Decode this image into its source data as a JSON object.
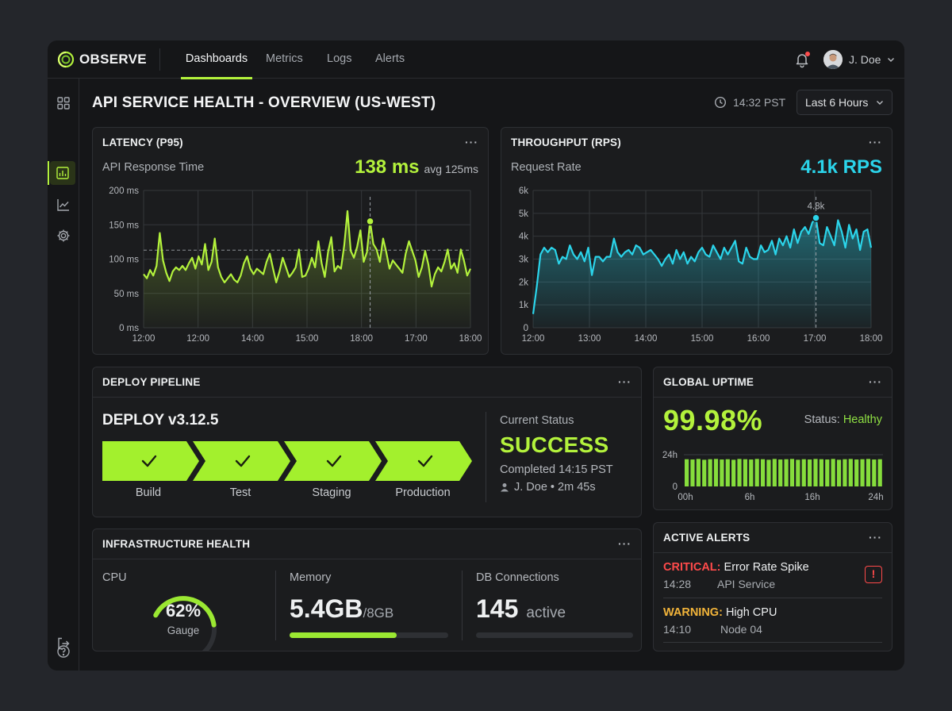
{
  "app": {
    "name": "OBSERVE"
  },
  "nav": {
    "tabs": [
      "Dashboards",
      "Metrics",
      "Logs",
      "Alerts"
    ],
    "active_tab": "Dashboards"
  },
  "user": {
    "name": "J. Doe"
  },
  "sidebar": {
    "items": [
      "grid-icon",
      "dashboard-icon",
      "chart-icon",
      "gear-icon"
    ],
    "bottom": [
      "help-icon",
      "logout-icon"
    ],
    "active": "dashboard-icon"
  },
  "page": {
    "title": "API SERVICE HEALTH - OVERVIEW (US-WEST)",
    "time": "14:32 PST",
    "range": "Last 6 Hours"
  },
  "colors": {
    "accent": "#b3f23c",
    "cyan": "#2bd4ea",
    "critical": "#ff4a4a",
    "warning": "#f2b43a",
    "healthy": "#8fe043"
  },
  "latency": {
    "title": "LATENCY (P95)",
    "subtitle": "API Response Time",
    "value": "138 ms",
    "avg": "avg 125ms",
    "more": "···",
    "chart_data": {
      "type": "line",
      "ylabels": [
        "200 ms",
        "150 ms",
        "100 ms",
        "50 ms",
        "0 ms"
      ],
      "xlabels": [
        "12:00",
        "12:00",
        "14:00",
        "15:00",
        "18:00",
        "17:00",
        "18:00"
      ],
      "ylim": [
        0,
        200
      ],
      "reference_line": 113,
      "marker": {
        "index": 70,
        "value": 155
      },
      "values": [
        78,
        72,
        84,
        76,
        90,
        138,
        98,
        80,
        68,
        82,
        88,
        84,
        90,
        84,
        94,
        102,
        86,
        104,
        92,
        122,
        84,
        96,
        130,
        88,
        74,
        66,
        72,
        78,
        70,
        66,
        76,
        94,
        104,
        86,
        78,
        86,
        82,
        78,
        96,
        108,
        86,
        66,
        82,
        102,
        88,
        74,
        80,
        88,
        114,
        74,
        76,
        86,
        102,
        88,
        126,
        94,
        74,
        110,
        132,
        82,
        90,
        86,
        120,
        170,
        112,
        102,
        118,
        142,
        96,
        110,
        155,
        122,
        114,
        96,
        130,
        110,
        86,
        98,
        92,
        86,
        80,
        108,
        126,
        112,
        98,
        74,
        88,
        112,
        92,
        60,
        78,
        88,
        82,
        96,
        114,
        86,
        94,
        80,
        114,
        98,
        76,
        86
      ]
    }
  },
  "throughput": {
    "title": "THROUGHPUT (RPS)",
    "subtitle": "Request Rate",
    "value": "4.1k RPS",
    "more": "···",
    "chart_data": {
      "type": "area",
      "ylabels": [
        "6k",
        "5k",
        "4k",
        "3k",
        "2k",
        "1k",
        "0"
      ],
      "xlabels": [
        "12:00",
        "13:00",
        "14:00",
        "15:00",
        "16:00",
        "17:00",
        "18:00"
      ],
      "ylim": [
        0,
        6000
      ],
      "marker": {
        "index": 77,
        "value": 4800,
        "label": "4.8k"
      },
      "values": [
        600,
        1800,
        3200,
        3500,
        3300,
        3500,
        3400,
        2800,
        3100,
        3000,
        3600,
        3200,
        3000,
        3300,
        2900,
        3500,
        2300,
        3100,
        3100,
        2900,
        3100,
        3100,
        3900,
        3300,
        3100,
        3300,
        3400,
        3200,
        3600,
        3500,
        3200,
        3300,
        3400,
        3200,
        3000,
        2700,
        3000,
        3200,
        2800,
        3400,
        3000,
        3300,
        2800,
        3100,
        2900,
        3300,
        3500,
        3200,
        3100,
        3600,
        3300,
        3000,
        3500,
        3200,
        3500,
        3800,
        2900,
        2800,
        3500,
        3100,
        3000,
        3000,
        3600,
        3300,
        3400,
        3800,
        3200,
        3900,
        3600,
        4000,
        3500,
        4300,
        3700,
        4200,
        4400,
        4100,
        4600,
        4800,
        3700,
        3600,
        4400,
        4000,
        3600,
        4700,
        4200,
        3500,
        4500,
        3900,
        4300,
        3400,
        4200,
        4300,
        3500
      ]
    }
  },
  "deploy": {
    "title": "DEPLOY PIPELINE",
    "more": "···",
    "version": "DEPLOY v3.12.5",
    "stages": [
      "Build",
      "Test",
      "Staging",
      "Production"
    ],
    "status_label": "Current Status",
    "status": "SUCCESS",
    "completed": "Completed 14:15 PST",
    "by": "J. Doe • 2m 45s"
  },
  "uptime": {
    "title": "GLOBAL UPTIME",
    "more": "···",
    "value": "99.98%",
    "status_label": "Status:",
    "status": "Healthy",
    "chart_data": {
      "type": "bar",
      "ylabels": [
        "24h",
        "0"
      ],
      "xlabels": [
        "00h",
        "6h",
        "16h",
        "24h"
      ],
      "bars": 34,
      "values": [
        0.98,
        0.97,
        0.99,
        0.96,
        0.98,
        0.99,
        0.97,
        0.98,
        0.96,
        0.99,
        0.98,
        0.97,
        0.99,
        0.98,
        0.96,
        0.99,
        0.97,
        0.98,
        0.99,
        0.96,
        0.98,
        0.97,
        0.99,
        0.98,
        0.97,
        0.99,
        0.96,
        0.98,
        0.99,
        0.97,
        0.98,
        0.99,
        0.97,
        0.98
      ]
    }
  },
  "infra": {
    "title": "INFRASTRUCTURE HEALTH",
    "more": "···",
    "cpu_label": "CPU",
    "cpu_value": "62%",
    "cpu_fraction": 0.62,
    "cpu_sub": "Gauge",
    "mem_label": "Memory",
    "mem_value": "5.4GB",
    "mem_total": "/8GB",
    "mem_fraction": 0.675,
    "db_label": "DB Connections",
    "db_value": "145",
    "db_unit": "active",
    "db_fraction": 0
  },
  "alerts": {
    "title": "ACTIVE ALERTS",
    "more": "···",
    "items": [
      {
        "severity": "CRITICAL:",
        "title": "Error Rate Spike",
        "time": "14:28",
        "source": "API Service"
      },
      {
        "severity": "WARNING:",
        "title": "High CPU",
        "time": "14:10",
        "source": "Node 04"
      }
    ],
    "icon_glyph": "!"
  }
}
